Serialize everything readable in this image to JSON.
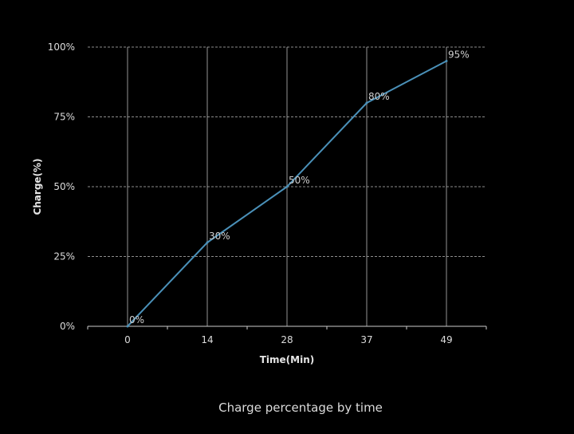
{
  "chart_data": {
    "type": "line",
    "caption": "Charge percentage by time",
    "xlabel": "Time(Min)",
    "ylabel": "Charge(%)",
    "x_ticks": [
      "0",
      "14",
      "28",
      "37",
      "49"
    ],
    "y_ticks": [
      "0%",
      "25%",
      "50%",
      "75%",
      "100%"
    ],
    "y_tick_values": [
      0,
      25,
      50,
      75,
      100
    ],
    "ylim": [
      0,
      100
    ],
    "grid": true,
    "series": [
      {
        "x": [
          "0",
          "14",
          "28",
          "37",
          "49"
        ],
        "values": [
          0,
          30,
          50,
          80,
          95
        ],
        "labels": [
          "0%",
          "30%",
          "50%",
          "80%",
          "95%"
        ],
        "color": "#4a90b8"
      }
    ],
    "gridline_color": "#bbbbbb",
    "background": "#000000"
  }
}
